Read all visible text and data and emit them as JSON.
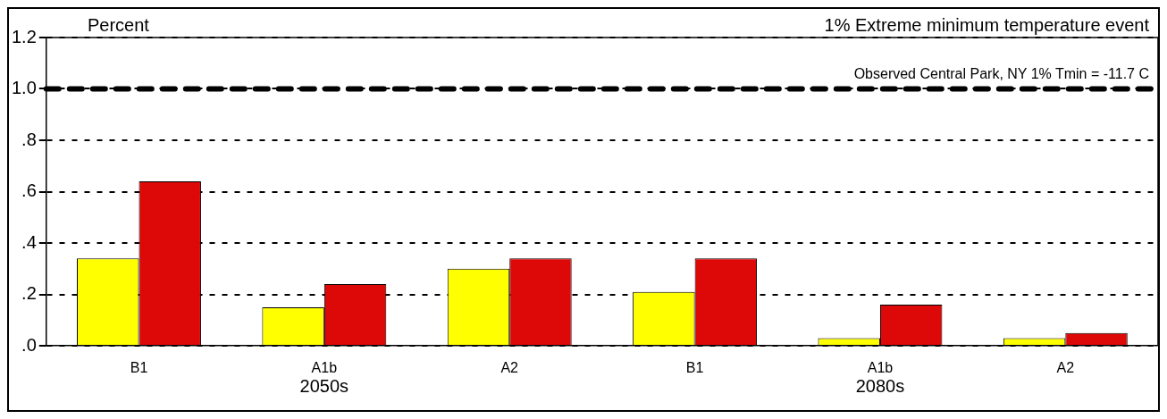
{
  "chart_data": {
    "type": "bar",
    "title": "1% Extreme minimum temperature event",
    "ylabel": "Percent",
    "categories": [
      "B1",
      "A1b",
      "A2",
      "B1",
      "A1b",
      "A2"
    ],
    "series": [
      {
        "color": "#ffff00",
        "values": [
          0.34,
          0.15,
          0.3,
          0.21,
          0.03,
          0.03
        ]
      },
      {
        "color": "#dd0808",
        "values": [
          0.64,
          0.24,
          0.34,
          0.34,
          0.16,
          0.05
        ]
      }
    ],
    "ylim": [
      0,
      1.2
    ],
    "yticks": [
      {
        "value": 0,
        "label": ".0"
      },
      {
        "value": 0.2,
        "label": ".2"
      },
      {
        "value": 0.4,
        "label": ".4"
      },
      {
        "value": 0.6,
        "label": ".6"
      },
      {
        "value": 0.8,
        "label": ".8"
      },
      {
        "value": 1,
        "label": "1.0"
      },
      {
        "value": 1.2,
        "label": "1.2"
      }
    ],
    "ref_lines": [
      {
        "axis": "y",
        "value": 1.0,
        "label": "Observed Central Park, NY 1% Tmin = -11.7 C",
        "color": "#000000",
        "line_style": "dashed"
      }
    ],
    "annotations": [
      "2050s",
      "2080s"
    ],
    "grid": "y",
    "legend": false
  }
}
